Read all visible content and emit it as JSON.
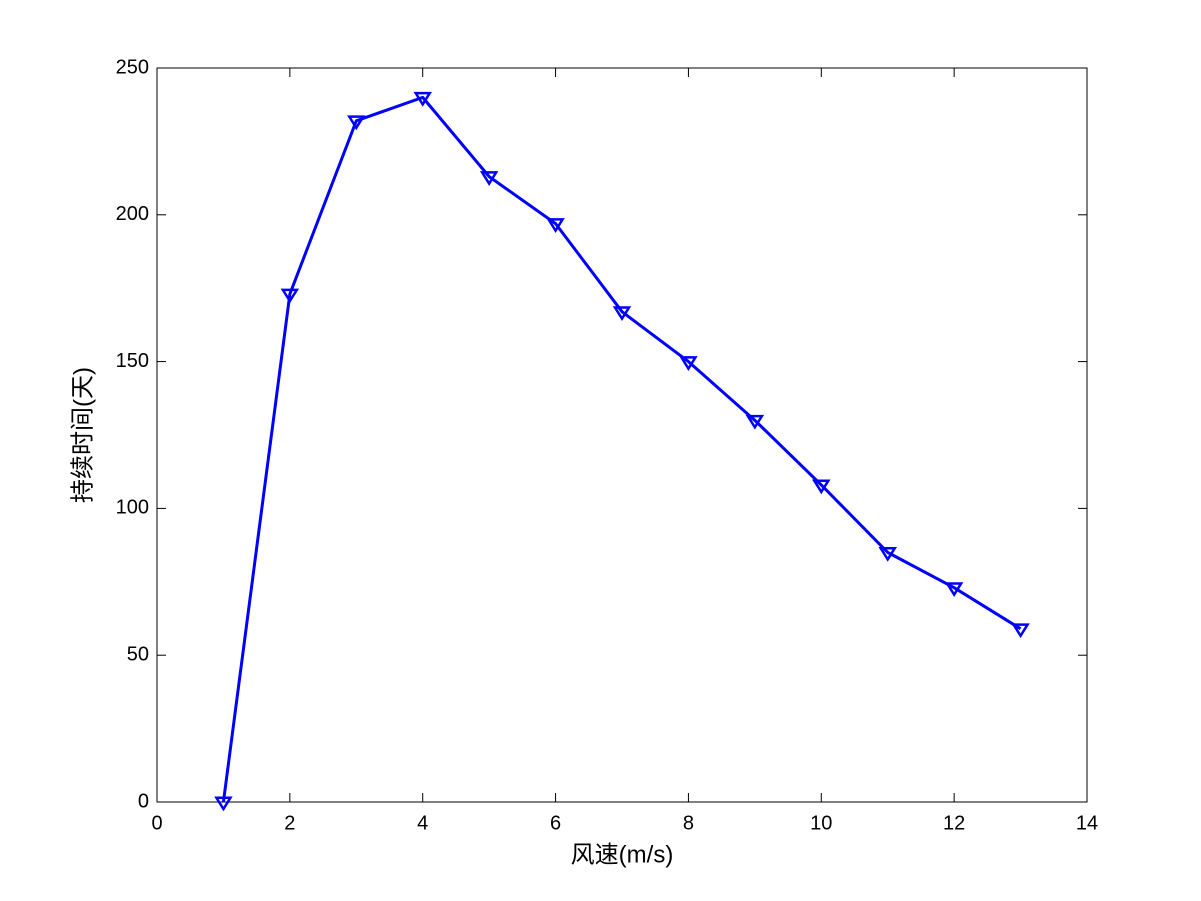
{
  "chart_data": {
    "type": "line",
    "xlabel": "风速(m/s)",
    "ylabel": "持续时间(天)",
    "x": [
      1,
      2,
      3,
      4,
      5,
      6,
      7,
      8,
      9,
      10,
      11,
      12,
      13
    ],
    "values": [
      0,
      173,
      232,
      240,
      213,
      197,
      167,
      150,
      130,
      108,
      85,
      73,
      59
    ],
    "color": "#0000ff",
    "marker": "v",
    "xlim": [
      0,
      14
    ],
    "xticks": [
      0,
      2,
      4,
      6,
      8,
      10,
      12,
      14
    ],
    "ylim": [
      0,
      250
    ],
    "yticks": [
      0,
      50,
      100,
      150,
      200,
      250
    ],
    "grid": false
  }
}
